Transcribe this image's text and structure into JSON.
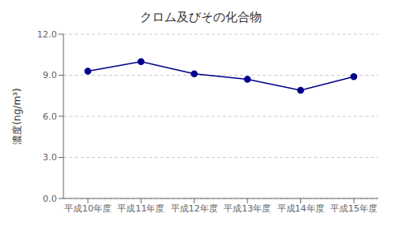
{
  "chart_data": {
    "type": "line",
    "title": "クロム及びその化合物",
    "categories": [
      "平成10年度",
      "平成11年度",
      "平成12年度",
      "平成13年度",
      "平成14年度",
      "平成15年度"
    ],
    "values": [
      9.3,
      10.0,
      9.1,
      8.7,
      7.9,
      8.9
    ],
    "ylabel": "濃度(ng/m³)",
    "ylim": [
      0.0,
      12.0
    ],
    "yticks": [
      {
        "value": 0.0,
        "label": "0.0"
      },
      {
        "value": 3.0,
        "label": "3.0"
      },
      {
        "value": 6.0,
        "label": "6.0"
      },
      {
        "value": 9.0,
        "label": "9.0"
      },
      {
        "value": 12.0,
        "label": "12.0"
      }
    ],
    "color": "#00008B",
    "marker": "circle",
    "grid": true
  }
}
